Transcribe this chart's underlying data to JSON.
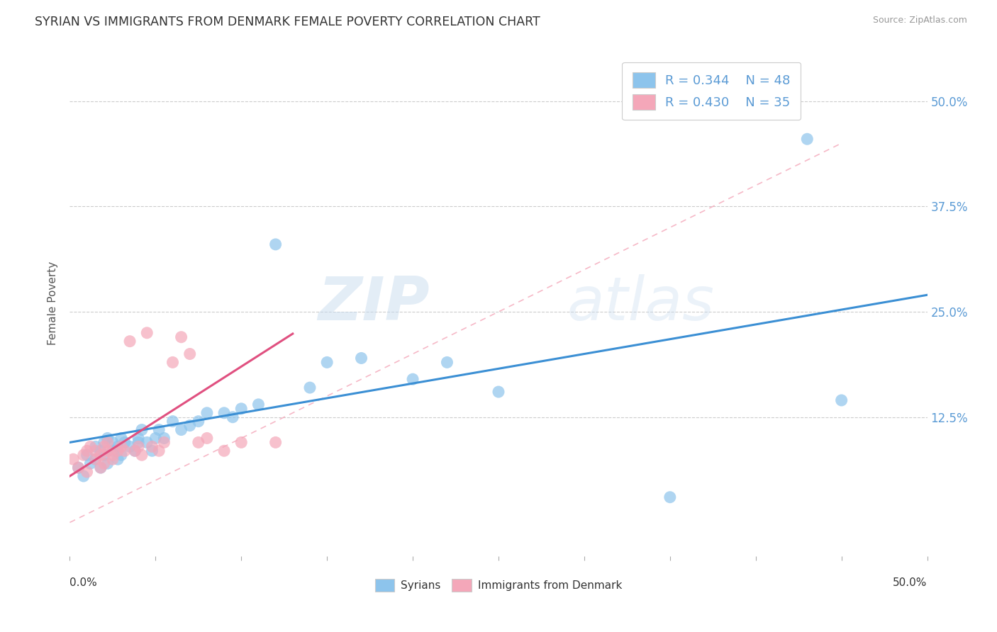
{
  "title": "SYRIAN VS IMMIGRANTS FROM DENMARK FEMALE POVERTY CORRELATION CHART",
  "source": "Source: ZipAtlas.com",
  "ylabel": "Female Poverty",
  "yticks": [
    0.125,
    0.25,
    0.375,
    0.5
  ],
  "ytick_labels": [
    "12.5%",
    "25.0%",
    "37.5%",
    "50.0%"
  ],
  "xlim": [
    0.0,
    0.5
  ],
  "ylim": [
    -0.04,
    0.56
  ],
  "legend_entry1": "R = 0.344    N = 48",
  "legend_entry2": "R = 0.430    N = 35",
  "watermark_zip": "ZIP",
  "watermark_atlas": "atlas",
  "syrians_color": "#8DC4EC",
  "denmark_color": "#F4A7B9",
  "syrians_line_color": "#3B8FD4",
  "denmark_line_color": "#E05080",
  "diag_color": "#F4A7B9",
  "syrians_x": [
    0.005,
    0.008,
    0.01,
    0.012,
    0.015,
    0.015,
    0.018,
    0.018,
    0.02,
    0.02,
    0.022,
    0.022,
    0.025,
    0.025,
    0.028,
    0.028,
    0.03,
    0.03,
    0.032,
    0.035,
    0.038,
    0.04,
    0.04,
    0.042,
    0.045,
    0.048,
    0.05,
    0.052,
    0.055,
    0.06,
    0.065,
    0.07,
    0.075,
    0.08,
    0.09,
    0.095,
    0.1,
    0.11,
    0.12,
    0.14,
    0.15,
    0.17,
    0.2,
    0.22,
    0.25,
    0.35,
    0.43,
    0.45
  ],
  "syrians_y": [
    0.065,
    0.055,
    0.08,
    0.07,
    0.09,
    0.075,
    0.065,
    0.085,
    0.095,
    0.08,
    0.07,
    0.1,
    0.085,
    0.095,
    0.075,
    0.09,
    0.08,
    0.1,
    0.095,
    0.09,
    0.085,
    0.1,
    0.095,
    0.11,
    0.095,
    0.085,
    0.1,
    0.11,
    0.1,
    0.12,
    0.11,
    0.115,
    0.12,
    0.13,
    0.13,
    0.125,
    0.135,
    0.14,
    0.33,
    0.16,
    0.19,
    0.195,
    0.17,
    0.19,
    0.155,
    0.03,
    0.455,
    0.145
  ],
  "denmark_x": [
    0.002,
    0.005,
    0.008,
    0.01,
    0.01,
    0.012,
    0.015,
    0.015,
    0.018,
    0.018,
    0.02,
    0.02,
    0.022,
    0.022,
    0.025,
    0.025,
    0.028,
    0.03,
    0.032,
    0.035,
    0.038,
    0.04,
    0.042,
    0.045,
    0.048,
    0.052,
    0.055,
    0.06,
    0.065,
    0.07,
    0.075,
    0.08,
    0.09,
    0.1,
    0.12
  ],
  "denmark_y": [
    0.075,
    0.065,
    0.08,
    0.06,
    0.085,
    0.09,
    0.085,
    0.075,
    0.08,
    0.065,
    0.07,
    0.09,
    0.085,
    0.095,
    0.08,
    0.075,
    0.085,
    0.09,
    0.085,
    0.215,
    0.085,
    0.09,
    0.08,
    0.225,
    0.09,
    0.085,
    0.095,
    0.19,
    0.22,
    0.2,
    0.095,
    0.1,
    0.085,
    0.095,
    0.095
  ]
}
